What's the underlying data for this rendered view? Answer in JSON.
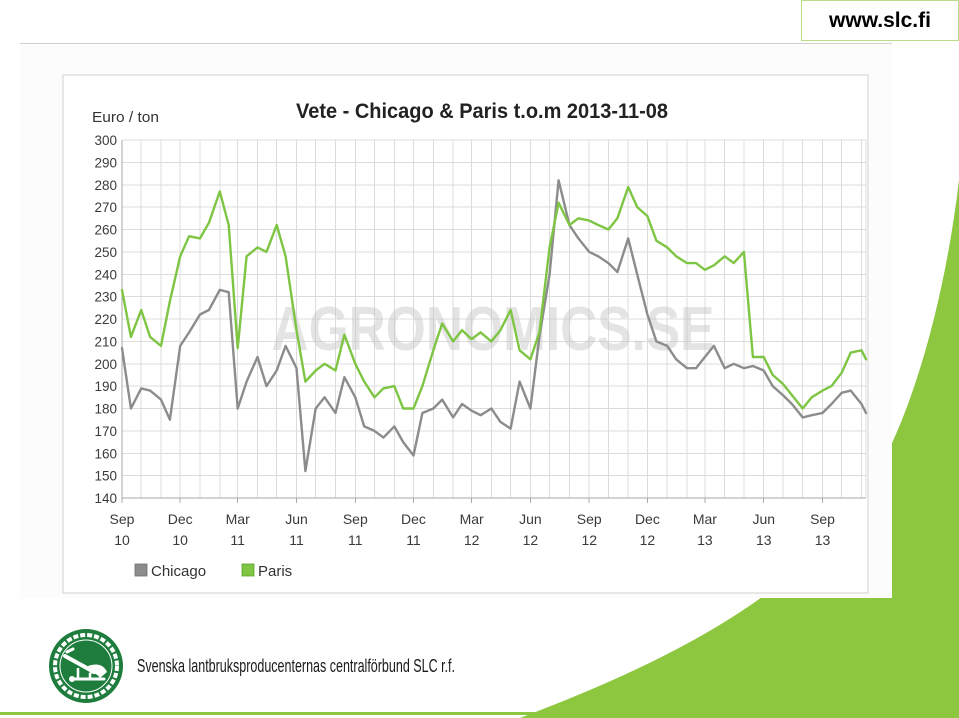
{
  "header": {
    "url": "www.slc.fi"
  },
  "footer": {
    "organization_name": "Svenska lantbruksproducenternas centralförbund SLC r.f.",
    "logo_icon": "plow-emblem-icon"
  },
  "watermark": "AGRONOMICS.SE",
  "colors": {
    "accent_green": "#8dc63f",
    "logo_green": "#1e7d3c",
    "url_box_border": "#b9df86"
  },
  "chart_data": {
    "type": "line",
    "title": "Vete - Chicago & Paris t.o.m 2013-11-08",
    "xlabel": "",
    "ylabel": "Euro / ton",
    "ylim": [
      140,
      300
    ],
    "yticks": [
      140,
      150,
      160,
      170,
      180,
      190,
      200,
      210,
      220,
      230,
      240,
      250,
      260,
      270,
      280,
      290,
      300
    ],
    "xlim": [
      "2010-09-01",
      "2013-11-08"
    ],
    "xticks": [
      {
        "date": "2010-09-01",
        "month": "Sep",
        "year": "10"
      },
      {
        "date": "2010-12-01",
        "month": "Dec",
        "year": "10"
      },
      {
        "date": "2011-03-01",
        "month": "Mar",
        "year": "11"
      },
      {
        "date": "2011-06-01",
        "month": "Jun",
        "year": "11"
      },
      {
        "date": "2011-09-01",
        "month": "Sep",
        "year": "11"
      },
      {
        "date": "2011-12-01",
        "month": "Dec",
        "year": "11"
      },
      {
        "date": "2012-03-01",
        "month": "Mar",
        "year": "12"
      },
      {
        "date": "2012-06-01",
        "month": "Jun",
        "year": "12"
      },
      {
        "date": "2012-09-01",
        "month": "Sep",
        "year": "12"
      },
      {
        "date": "2012-12-01",
        "month": "Dec",
        "year": "12"
      },
      {
        "date": "2013-03-01",
        "month": "Mar",
        "year": "13"
      },
      {
        "date": "2013-06-01",
        "month": "Jun",
        "year": "13"
      },
      {
        "date": "2013-09-01",
        "month": "Sep",
        "year": "13"
      }
    ],
    "grid": true,
    "legend": "bottom-left",
    "x": [
      "2010-09-01",
      "2010-09-15",
      "2010-10-01",
      "2010-10-15",
      "2010-11-01",
      "2010-11-15",
      "2010-12-01",
      "2010-12-15",
      "2011-01-01",
      "2011-01-15",
      "2011-02-01",
      "2011-02-15",
      "2011-03-01",
      "2011-03-15",
      "2011-04-01",
      "2011-04-15",
      "2011-05-01",
      "2011-05-15",
      "2011-06-01",
      "2011-06-15",
      "2011-07-01",
      "2011-07-15",
      "2011-08-01",
      "2011-08-15",
      "2011-09-01",
      "2011-09-15",
      "2011-10-01",
      "2011-10-15",
      "2011-11-01",
      "2011-11-15",
      "2011-12-01",
      "2011-12-15",
      "2012-01-01",
      "2012-01-15",
      "2012-02-01",
      "2012-02-15",
      "2012-03-01",
      "2012-03-15",
      "2012-04-01",
      "2012-04-15",
      "2012-05-01",
      "2012-05-15",
      "2012-06-01",
      "2012-06-15",
      "2012-07-01",
      "2012-07-15",
      "2012-08-01",
      "2012-08-15",
      "2012-09-01",
      "2012-09-15",
      "2012-10-01",
      "2012-10-15",
      "2012-11-01",
      "2012-11-15",
      "2012-12-01",
      "2012-12-15",
      "2013-01-01",
      "2013-01-15",
      "2013-02-01",
      "2013-02-15",
      "2013-03-01",
      "2013-03-15",
      "2013-04-01",
      "2013-04-15",
      "2013-05-01",
      "2013-05-15",
      "2013-06-01",
      "2013-06-15",
      "2013-07-01",
      "2013-07-15",
      "2013-08-01",
      "2013-08-15",
      "2013-09-01",
      "2013-09-15",
      "2013-10-01",
      "2013-10-15",
      "2013-11-01",
      "2013-11-08"
    ],
    "series": [
      {
        "name": "Chicago",
        "color": "#8c8c8c",
        "values": [
          207,
          180,
          189,
          188,
          184,
          175,
          208,
          214,
          222,
          224,
          233,
          232,
          180,
          192,
          203,
          190,
          197,
          208,
          198,
          152,
          180,
          185,
          178,
          194,
          185,
          172,
          170,
          167,
          172,
          165,
          159,
          178,
          180,
          184,
          176,
          182,
          179,
          177,
          180,
          174,
          171,
          192,
          180,
          212,
          240,
          282,
          262,
          256,
          250,
          248,
          245,
          241,
          256,
          240,
          222,
          210,
          208,
          202,
          198,
          198,
          203,
          208,
          198,
          200,
          198,
          199,
          197,
          190,
          186,
          182,
          176,
          177,
          178,
          182,
          187,
          188,
          182,
          178
        ]
      },
      {
        "name": "Paris",
        "color": "#7ec544",
        "values": [
          233,
          212,
          224,
          212,
          208,
          228,
          248,
          257,
          256,
          263,
          277,
          262,
          207,
          248,
          252,
          250,
          262,
          248,
          215,
          192,
          197,
          200,
          197,
          213,
          200,
          192,
          185,
          189,
          190,
          180,
          180,
          190,
          206,
          218,
          210,
          215,
          211,
          214,
          210,
          215,
          224,
          206,
          202,
          214,
          252,
          272,
          262,
          265,
          264,
          262,
          260,
          265,
          279,
          270,
          266,
          255,
          252,
          248,
          245,
          245,
          242,
          244,
          248,
          245,
          250,
          203,
          203,
          195,
          191,
          186,
          180,
          185,
          188,
          190,
          196,
          205,
          206,
          202
        ]
      }
    ]
  }
}
